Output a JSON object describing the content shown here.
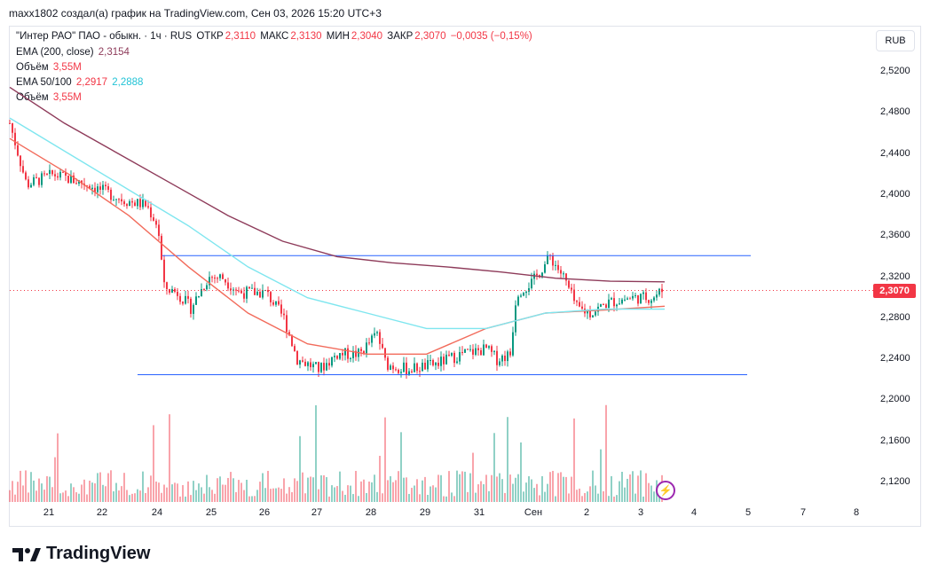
{
  "header": {
    "attribution": "maxx1802 создал(а) график на TradingView.com, Сен 03, 2026 15:20 UTC+3"
  },
  "legend": {
    "title": "\"Интер РАО\" ПАО - обыкн. · 1ч · RUS",
    "open_label": "ОТКР",
    "open": "2,3110",
    "high_label": "МАКС",
    "high": "2,3130",
    "low_label": "МИН",
    "low": "2,3040",
    "close_label": "ЗАКР",
    "close": "2,3070",
    "change": "−0,0035 (−0,15%)",
    "ema200_label": "EMA (200, close)",
    "ema200_value": "2,3154",
    "volume_label": "Объём",
    "volume_value": "3,55M",
    "ema50100_label": "EMA 50/100",
    "ema50_value": "2,2917",
    "ema100_value": "2,2888",
    "volume2_label": "Объём",
    "volume2_value": "3,55M"
  },
  "currency": "RUB",
  "price_axis": {
    "ticks": [
      "2,5200",
      "2,4800",
      "2,4400",
      "2,4000",
      "2,3600",
      "2,3200",
      "2,2800",
      "2,2400",
      "2,2000",
      "2,1600",
      "2,1200"
    ]
  },
  "current_price_tag": "2,3070",
  "footer": {
    "brand": "TradingView"
  },
  "colors": {
    "up": "#089981",
    "down": "#f23645",
    "ema200": "#8e3b5a",
    "ema50": "#f26b5b",
    "ema100": "#7fe6ef",
    "level": "#2962ff"
  },
  "chart_data": {
    "type": "candlestick",
    "title": "\"Интер РАО\" ПАО - обыкн. · 1ч · RUS",
    "y_axis": {
      "min": 2.1,
      "max": 2.54,
      "ticks": [
        2.52,
        2.48,
        2.44,
        2.4,
        2.36,
        2.32,
        2.28,
        2.24,
        2.2,
        2.16,
        2.12
      ]
    },
    "x_axis": {
      "labels": [
        "21",
        "22",
        "24",
        "25",
        "26",
        "27",
        "28",
        "29",
        "31",
        "Сен",
        "2",
        "3",
        "4",
        "5",
        "7",
        "8"
      ]
    },
    "support_level": 2.225,
    "resistance_level": 2.341,
    "last_close": 2.307,
    "series": [
      {
        "name": "EMA (200, close)",
        "values": [
          2.505,
          2.47,
          2.44,
          2.41,
          2.38,
          2.355,
          2.34,
          2.334,
          2.33,
          2.325,
          2.319,
          2.316,
          2.3154
        ]
      },
      {
        "name": "EMA 50",
        "values": [
          2.455,
          2.42,
          2.38,
          2.33,
          2.285,
          2.255,
          2.245,
          2.245,
          2.27,
          2.285,
          2.288,
          2.2917
        ]
      },
      {
        "name": "EMA 100",
        "values": [
          2.475,
          2.44,
          2.405,
          2.37,
          2.33,
          2.3,
          2.285,
          2.27,
          2.27,
          2.285,
          2.289,
          2.2888
        ]
      }
    ]
  }
}
